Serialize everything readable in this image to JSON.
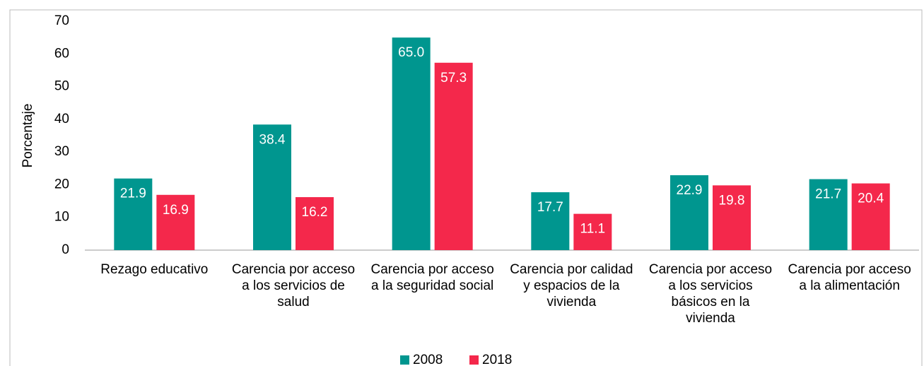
{
  "chart_data": {
    "type": "bar",
    "y_label": "Porcentaje",
    "categories": [
      "Rezago educativo",
      "Carencia por acceso a los servicios de salud",
      "Carencia por acceso a la seguridad social",
      "Carencia por calidad y espacios de la vivienda",
      "Carencia por acceso a los servicios básicos en la vivienda",
      "Carencia por acceso a la alimentación"
    ],
    "series": [
      {
        "name": "2008",
        "color": "#00968f",
        "values": [
          21.9,
          38.4,
          65.0,
          17.7,
          22.9,
          21.7
        ],
        "value_labels": [
          "21.9",
          "38.4",
          "65.0",
          "17.7",
          "22.9",
          "21.7"
        ]
      },
      {
        "name": "2018",
        "color": "#f4284b",
        "values": [
          16.9,
          16.2,
          57.3,
          11.1,
          19.8,
          20.4
        ],
        "value_labels": [
          "16.9",
          "16.2",
          "57.3",
          "11.1",
          "19.8",
          "20.4"
        ]
      }
    ],
    "ylim": [
      0,
      70
    ],
    "yticks": [
      0,
      10,
      20,
      30,
      40,
      50,
      60,
      70
    ]
  }
}
